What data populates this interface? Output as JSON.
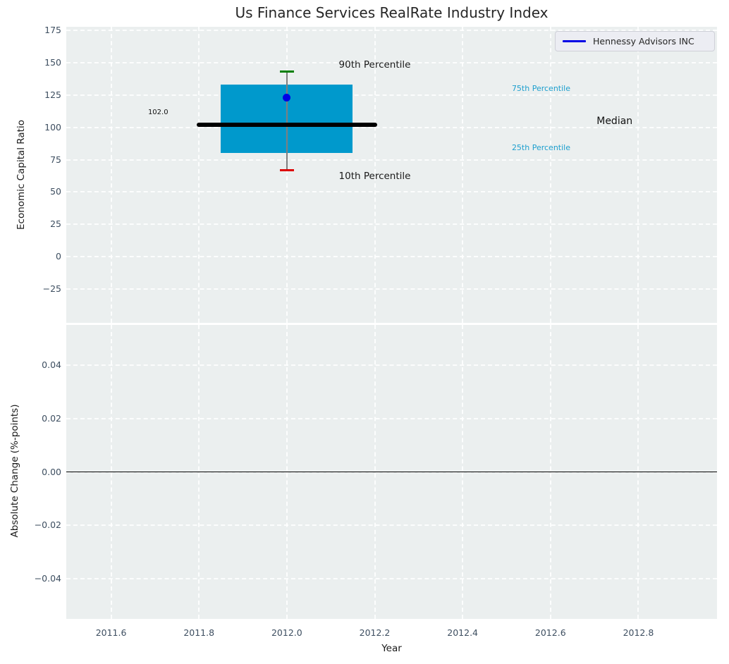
{
  "colors": {
    "figure_background": "#ffffff",
    "plot_background": "#ebefef",
    "grid": "rgba(255,255,255,0.85)",
    "tick_label": "#3d4e60",
    "title_text": "#262626",
    "axis_label_text": "#1a1a1a"
  },
  "chart_data": [
    {
      "type": "box",
      "title": "Us Finance Services RealRate Industry Index",
      "ylabel": "Economic Capital Ratio",
      "grid": true,
      "xlim": [
        2011.498,
        2012.979
      ],
      "ylim": [
        -51.2,
        177.9
      ],
      "xticks": {
        "values": [
          2011.6,
          2011.8,
          2012.0,
          2012.2,
          2012.4,
          2012.6,
          2012.8
        ],
        "labels": [
          "2011.6",
          "2011.8",
          "2012.0",
          "2012.2",
          "2012.4",
          "2012.6",
          "2012.8"
        ],
        "labels_visible": false
      },
      "yticks": {
        "values": [
          175,
          150,
          125,
          100,
          75,
          50,
          25,
          0,
          -25
        ],
        "labels": [
          "175",
          "150",
          "125",
          "100",
          "75",
          "50",
          "25",
          "0",
          "−25"
        ]
      },
      "legend": {
        "label": "Hennessy Advisors INC",
        "line_color": "#0000e6",
        "position": "upper right"
      },
      "box": {
        "x": 2012.0,
        "p10": 67,
        "p25": 80,
        "median": 102.0,
        "p75": 133,
        "p90": 143,
        "box_halfwidth": 0.15,
        "median_halfwidth": 0.205,
        "cap_halfwidth": 0.016,
        "box_color": "#0099cc",
        "median_color": "#000000",
        "whisker_color": "#7f7f7f",
        "p90_cap_color": "#007f00",
        "p10_cap_color": "#dd0000"
      },
      "point": {
        "label": "Hennessy Advisors INC",
        "x": 2012.0,
        "y": 123,
        "color": "#0000e6"
      },
      "annotations": [
        {
          "text": "90th Percentile",
          "x": 2012.2,
          "y": 148,
          "color": "#1a1a1a",
          "size": 13.5,
          "anchor": "center"
        },
        {
          "text": "10th Percentile",
          "x": 2012.2,
          "y": 62,
          "color": "#1a1a1a",
          "size": 13.5,
          "anchor": "center"
        },
        {
          "text": "75th Percentile",
          "x": 2012.512,
          "y": 130,
          "color": "#1d9fce",
          "size": 11,
          "anchor": "left"
        },
        {
          "text": "25th Percentile",
          "x": 2012.512,
          "y": 84,
          "color": "#1d9fce",
          "size": 11,
          "anchor": "left"
        },
        {
          "text": "Median",
          "x": 2012.705,
          "y": 104,
          "color": "#111111",
          "size": 14,
          "anchor": "left"
        },
        {
          "text": "102.0",
          "x": 2011.707,
          "y": 111.5,
          "color": "#111111",
          "size": 10,
          "anchor": "center"
        }
      ]
    },
    {
      "type": "line",
      "ylabel": "Absolute Change (%-points)",
      "xlabel": "Year",
      "grid": true,
      "xlim": [
        2011.498,
        2012.979
      ],
      "ylim": [
        -0.055,
        0.055
      ],
      "xticks": {
        "values": [
          2011.6,
          2011.8,
          2012.0,
          2012.2,
          2012.4,
          2012.6,
          2012.8
        ],
        "labels": [
          "2011.6",
          "2011.8",
          "2012.0",
          "2012.2",
          "2012.4",
          "2012.6",
          "2012.8"
        ],
        "labels_visible": true
      },
      "yticks": {
        "values": [
          0.04,
          0.02,
          0.0,
          -0.02,
          -0.04
        ],
        "labels": [
          "0.04",
          "0.02",
          "0.00",
          "−0.02",
          "−0.04"
        ]
      },
      "zero_line": {
        "y": 0.0,
        "color": "#000000"
      },
      "series": []
    }
  ]
}
